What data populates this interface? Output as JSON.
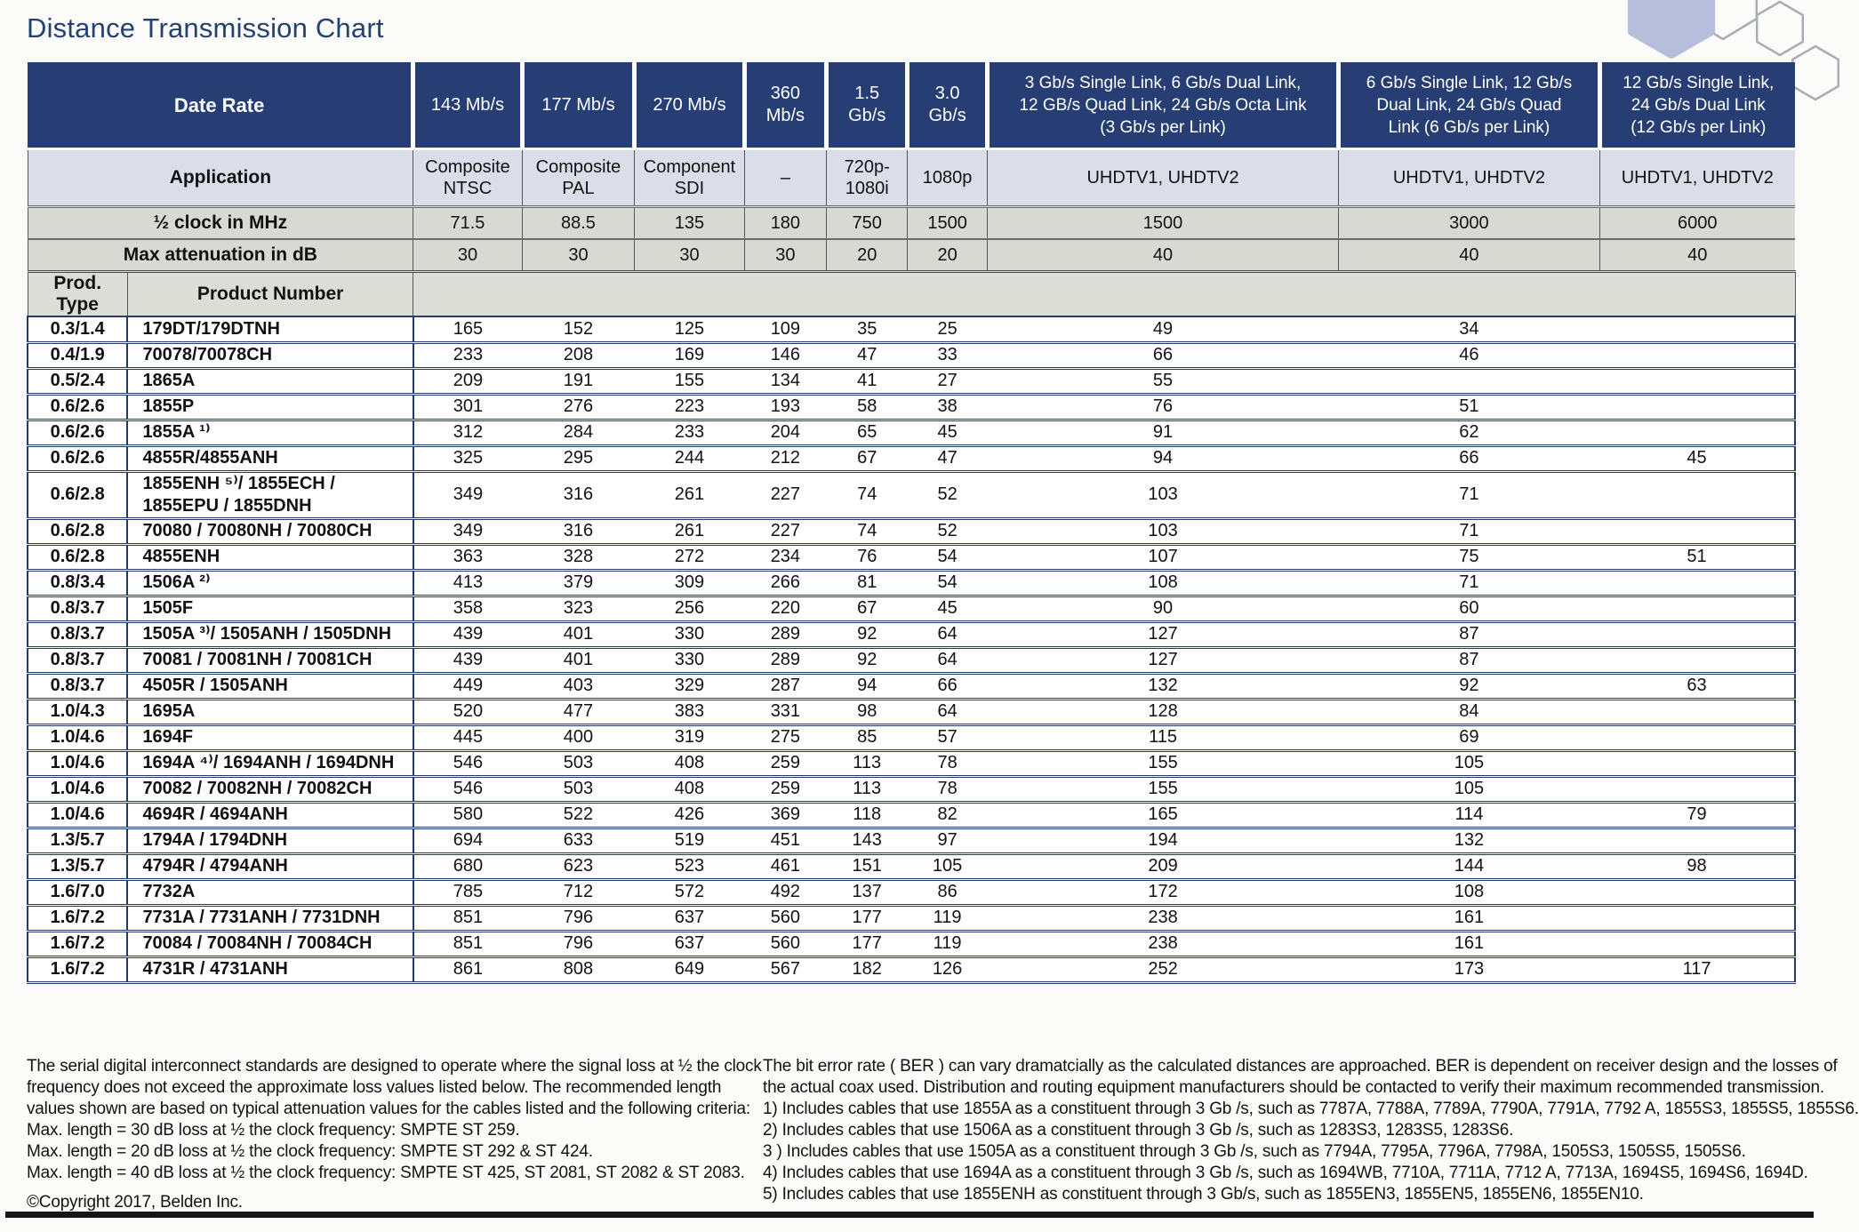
{
  "page": {
    "title": "Distance Transmission Chart",
    "copyright": "©Copyright 2017, Belden Inc."
  },
  "colors": {
    "header_navy": "#263e74",
    "application_row_bg": "#dbdde8",
    "grey_row_bg": "#d9d9d4",
    "row_separator_navy": "#24386b",
    "title_navy": "#24416f"
  },
  "decor": {
    "icon": "hexagon-pattern"
  },
  "table": {
    "data_rate_label": "Date Rate",
    "application_label": "Application",
    "clock_label": "½ clock in MHz",
    "attenuation_label": "Max attenuation in dB",
    "prod_type_label": "Prod. Type",
    "product_number_label": "Product Number",
    "data_rates": [
      "143 Mb/s",
      "177 Mb/s",
      "270 Mb/s",
      "360\nMb/s",
      "1.5\nGb/s",
      "3.0\nGb/s",
      "3 Gb/s Single Link, 6 Gb/s Dual Link,\n12 GB/s Quad Link, 24 Gb/s Octa Link\n(3 Gb/s per Link)",
      "6 Gb/s Single Link, 12 Gb/s\nDual Link, 24 Gb/s Quad\nLink (6 Gb/s per Link)",
      "12 Gb/s Single Link,\n24 Gb/s Dual Link\n(12 Gb/s per Link)"
    ],
    "applications": [
      "Composite\nNTSC",
      "Composite\nPAL",
      "Component\nSDI",
      "–",
      "720p-\n1080i",
      "1080p",
      "UHDTV1, UHDTV2",
      "UHDTV1, UHDTV2",
      "UHDTV1, UHDTV2"
    ],
    "half_clock_mhz": [
      "71.5",
      "88.5",
      "135",
      "180",
      "750",
      "1500",
      "1500",
      "3000",
      "6000"
    ],
    "max_attenuation_db": [
      "30",
      "30",
      "30",
      "30",
      "20",
      "20",
      "40",
      "40",
      "40"
    ],
    "rows": [
      {
        "type": "0.3/1.4",
        "product": "179DT/179DTNH",
        "values": [
          "165",
          "152",
          "125",
          "109",
          "35",
          "25",
          "49",
          "34",
          ""
        ]
      },
      {
        "type": "0.4/1.9",
        "product": "70078/70078CH",
        "values": [
          "233",
          "208",
          "169",
          "146",
          "47",
          "33",
          "66",
          "46",
          ""
        ]
      },
      {
        "type": "0.5/2.4",
        "product": "1865A",
        "values": [
          "209",
          "191",
          "155",
          "134",
          "41",
          "27",
          "55",
          "",
          ""
        ]
      },
      {
        "type": "0.6/2.6",
        "product": "1855P",
        "values": [
          "301",
          "276",
          "223",
          "193",
          "58",
          "38",
          "76",
          "51",
          ""
        ]
      },
      {
        "type": "0.6/2.6",
        "product": "1855A ¹⁾",
        "values": [
          "312",
          "284",
          "233",
          "204",
          "65",
          "45",
          "91",
          "62",
          ""
        ]
      },
      {
        "type": "0.6/2.6",
        "product": "4855R/4855ANH",
        "values": [
          "325",
          "295",
          "244",
          "212",
          "67",
          "47",
          "94",
          "66",
          "45"
        ]
      },
      {
        "type": "0.6/2.8",
        "product": "1855ENH ⁵⁾/ 1855ECH /\n1855EPU / 1855DNH",
        "values": [
          "349",
          "316",
          "261",
          "227",
          "74",
          "52",
          "103",
          "71",
          ""
        ]
      },
      {
        "type": "0.6/2.8",
        "product": "70080 / 70080NH / 70080CH",
        "values": [
          "349",
          "316",
          "261",
          "227",
          "74",
          "52",
          "103",
          "71",
          ""
        ]
      },
      {
        "type": "0.6/2.8",
        "product": "4855ENH",
        "values": [
          "363",
          "328",
          "272",
          "234",
          "76",
          "54",
          "107",
          "75",
          "51"
        ]
      },
      {
        "type": "0.8/3.4",
        "product": "1506A ²⁾",
        "values": [
          "413",
          "379",
          "309",
          "266",
          "81",
          "54",
          "108",
          "71",
          ""
        ]
      },
      {
        "type": "0.8/3.7",
        "product": "1505F",
        "values": [
          "358",
          "323",
          "256",
          "220",
          "67",
          "45",
          "90",
          "60",
          ""
        ]
      },
      {
        "type": "0.8/3.7",
        "product": "1505A ³⁾/ 1505ANH / 1505DNH",
        "values": [
          "439",
          "401",
          "330",
          "289",
          "92",
          "64",
          "127",
          "87",
          ""
        ]
      },
      {
        "type": "0.8/3.7",
        "product": "70081 / 70081NH / 70081CH",
        "values": [
          "439",
          "401",
          "330",
          "289",
          "92",
          "64",
          "127",
          "87",
          ""
        ]
      },
      {
        "type": "0.8/3.7",
        "product": "4505R / 1505ANH",
        "values": [
          "449",
          "403",
          "329",
          "287",
          "94",
          "66",
          "132",
          "92",
          "63"
        ]
      },
      {
        "type": "1.0/4.3",
        "product": "1695A",
        "values": [
          "520",
          "477",
          "383",
          "331",
          "98",
          "64",
          "128",
          "84",
          ""
        ]
      },
      {
        "type": "1.0/4.6",
        "product": "1694F",
        "values": [
          "445",
          "400",
          "319",
          "275",
          "85",
          "57",
          "115",
          "69",
          ""
        ]
      },
      {
        "type": "1.0/4.6",
        "product": "1694A ⁴⁾/ 1694ANH / 1694DNH",
        "values": [
          "546",
          "503",
          "408",
          "259",
          "113",
          "78",
          "155",
          "105",
          ""
        ]
      },
      {
        "type": "1.0/4.6",
        "product": "70082 / 70082NH / 70082CH",
        "values": [
          "546",
          "503",
          "408",
          "259",
          "113",
          "78",
          "155",
          "105",
          ""
        ]
      },
      {
        "type": "1.0/4.6",
        "product": "4694R / 4694ANH",
        "values": [
          "580",
          "522",
          "426",
          "369",
          "118",
          "82",
          "165",
          "114",
          "79"
        ]
      },
      {
        "type": "1.3/5.7",
        "product": "1794A / 1794DNH",
        "values": [
          "694",
          "633",
          "519",
          "451",
          "143",
          "97",
          "194",
          "132",
          ""
        ]
      },
      {
        "type": "1.3/5.7",
        "product": "4794R / 4794ANH",
        "values": [
          "680",
          "623",
          "523",
          "461",
          "151",
          "105",
          "209",
          "144",
          "98"
        ]
      },
      {
        "type": "1.6/7.0",
        "product": "7732A",
        "values": [
          "785",
          "712",
          "572",
          "492",
          "137",
          "86",
          "172",
          "108",
          ""
        ]
      },
      {
        "type": "1.6/7.2",
        "product": "7731A / 7731ANH / 7731DNH",
        "values": [
          "851",
          "796",
          "637",
          "560",
          "177",
          "119",
          "238",
          "161",
          ""
        ]
      },
      {
        "type": "1.6/7.2",
        "product": "70084 / 70084NH / 70084CH",
        "values": [
          "851",
          "796",
          "637",
          "560",
          "177",
          "119",
          "238",
          "161",
          ""
        ]
      },
      {
        "type": "1.6/7.2",
        "product": "4731R / 4731ANH",
        "values": [
          "861",
          "808",
          "649",
          "567",
          "182",
          "126",
          "252",
          "173",
          "117"
        ]
      }
    ]
  },
  "footer": {
    "left_lines": [
      "The serial digital interconnect standards are designed to operate where the signal loss at ½ the clock",
      "frequency does not exceed the approximate loss values listed below. The recommended length",
      "values shown are based on typical attenuation values for the cables listed and the following criteria:",
      "Max. length = 30 dB loss at ½ the clock frequency: SMPTE ST 259.",
      "Max. length = 20 dB loss at ½ the clock frequency: SMPTE ST 292 & ST 424.",
      "Max. length = 40 dB loss at ½ the clock frequency: SMPTE ST 425, ST 2081, ST 2082 & ST 2083."
    ],
    "right_lines": [
      "The bit error rate ( BER ) can vary dramatcially as the calculated distances are approached. BER is dependent on receiver design and the losses of",
      "the actual coax used. Distribution and routing equipment manufacturers should be contacted to verify their maximum recommended transmission.",
      "1) Includes cables that use 1855A as a constituent through 3 Gb /s, such as 7787A, 7788A, 7789A, 7790A, 7791A, 7792 A, 1855S3, 1855S5, 1855S6.",
      "2) Includes cables that use 1506A as a constituent through 3 Gb /s, such as 1283S3, 1283S5, 1283S6.",
      "3 ) Includes cables that use 1505A as a constituent through 3 Gb /s, such as 7794A, 7795A, 7796A, 7798A, 1505S3, 1505S5, 1505S6.",
      "4) Includes cables that use 1694A as a constituent through 3 Gb /s, such as 1694WB, 7710A, 7711A, 7712 A, 7713A, 1694S5, 1694S6, 1694D.",
      "5) Includes cables that use 1855ENH as constituent through 3 Gb/s, such as 1855EN3, 1855EN5, 1855EN6, 1855EN10."
    ]
  }
}
